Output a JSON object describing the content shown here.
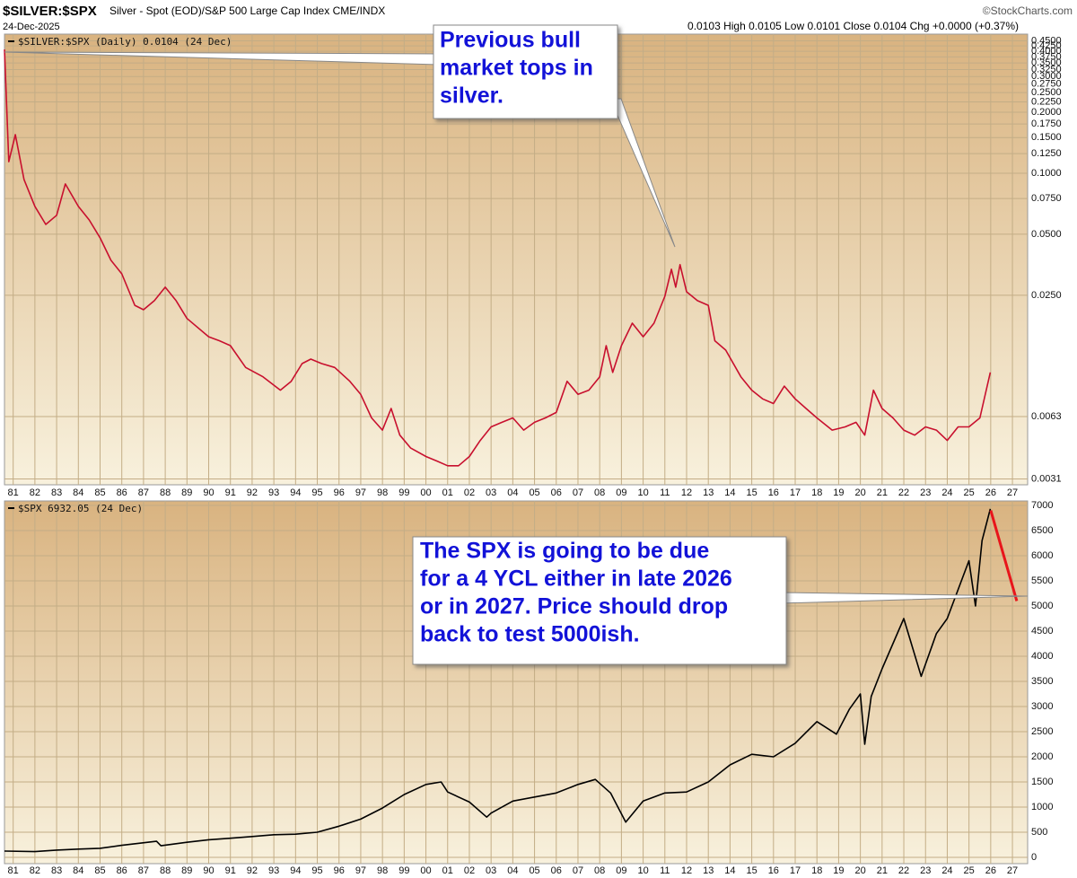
{
  "header": {
    "symbol": "$SILVER:$SPX",
    "description": "Silver - Spot (EOD)/S&P 500 Large Cap Index CME/INDX",
    "date": "24-Dec-2025",
    "credit": "©StockCharts.com",
    "quote": "0.0103 High 0.0105 Low 0.0101 Close 0.0104 Chg +0.0000 (+0.37%)"
  },
  "chart_data": [
    {
      "type": "line",
      "log_scale": true,
      "grid": true,
      "callout": [
        "Previous bull",
        "market tops in",
        "silver."
      ],
      "xlim": [
        1980.6,
        2027.7
      ],
      "ylim": [
        0.0029,
        0.486
      ],
      "xticks": [
        {
          "value": 1981,
          "label": "81"
        },
        {
          "value": 1982,
          "label": "82"
        },
        {
          "value": 1983,
          "label": "83"
        },
        {
          "value": 1984,
          "label": "84"
        },
        {
          "value": 1985,
          "label": "85"
        },
        {
          "value": 1986,
          "label": "86"
        },
        {
          "value": 1987,
          "label": "87"
        },
        {
          "value": 1988,
          "label": "88"
        },
        {
          "value": 1989,
          "label": "89"
        },
        {
          "value": 1990,
          "label": "90"
        },
        {
          "value": 1991,
          "label": "91"
        },
        {
          "value": 1992,
          "label": "92"
        },
        {
          "value": 1993,
          "label": "93"
        },
        {
          "value": 1994,
          "label": "94"
        },
        {
          "value": 1995,
          "label": "95"
        },
        {
          "value": 1996,
          "label": "96"
        },
        {
          "value": 1997,
          "label": "97"
        },
        {
          "value": 1998,
          "label": "98"
        },
        {
          "value": 1999,
          "label": "99"
        },
        {
          "value": 2000,
          "label": "00"
        },
        {
          "value": 2001,
          "label": "01"
        },
        {
          "value": 2002,
          "label": "02"
        },
        {
          "value": 2003,
          "label": "03"
        },
        {
          "value": 2004,
          "label": "04"
        },
        {
          "value": 2005,
          "label": "05"
        },
        {
          "value": 2006,
          "label": "06"
        },
        {
          "value": 2007,
          "label": "07"
        },
        {
          "value": 2008,
          "label": "08"
        },
        {
          "value": 2009,
          "label": "09"
        },
        {
          "value": 2010,
          "label": "10"
        },
        {
          "value": 2011,
          "label": "11"
        },
        {
          "value": 2012,
          "label": "12"
        },
        {
          "value": 2013,
          "label": "13"
        },
        {
          "value": 2014,
          "label": "14"
        },
        {
          "value": 2015,
          "label": "15"
        },
        {
          "value": 2016,
          "label": "16"
        },
        {
          "value": 2017,
          "label": "17"
        },
        {
          "value": 2018,
          "label": "18"
        },
        {
          "value": 2019,
          "label": "19"
        },
        {
          "value": 2020,
          "label": "20"
        },
        {
          "value": 2021,
          "label": "21"
        },
        {
          "value": 2022,
          "label": "22"
        },
        {
          "value": 2023,
          "label": "23"
        },
        {
          "value": 2024,
          "label": "24"
        },
        {
          "value": 2025,
          "label": "25"
        },
        {
          "value": 2026,
          "label": "26"
        },
        {
          "value": 2027,
          "label": "27"
        }
      ],
      "yticks": [
        {
          "value": 0.45,
          "label": "0.4500"
        },
        {
          "value": 0.425,
          "label": "0.4250"
        },
        {
          "value": 0.4,
          "label": "0.4000"
        },
        {
          "value": 0.375,
          "label": "0.3750"
        },
        {
          "value": 0.35,
          "label": "0.3500"
        },
        {
          "value": 0.325,
          "label": "0.3250"
        },
        {
          "value": 0.3,
          "label": "0.3000"
        },
        {
          "value": 0.275,
          "label": "0.2750"
        },
        {
          "value": 0.25,
          "label": "0.2500"
        },
        {
          "value": 0.225,
          "label": "0.2250"
        },
        {
          "value": 0.2,
          "label": "0.2000"
        },
        {
          "value": 0.175,
          "label": "0.1750"
        },
        {
          "value": 0.15,
          "label": "0.1500"
        },
        {
          "value": 0.125,
          "label": "0.1250"
        },
        {
          "value": 0.1,
          "label": "0.1000"
        },
        {
          "value": 0.075,
          "label": "0.0750"
        },
        {
          "value": 0.05,
          "label": "0.0500"
        },
        {
          "value": 0.025,
          "label": "0.0250"
        },
        {
          "value": 0.0063,
          "label": "0.0063"
        },
        {
          "value": 0.0031,
          "label": "0.0031"
        }
      ],
      "x": [
        1980.6,
        1980.8,
        1981.1,
        1981.5,
        1982,
        1982.5,
        1983,
        1983.4,
        1984,
        1984.5,
        1985,
        1985.5,
        1986,
        1986.6,
        1987,
        1987.5,
        1988,
        1988.5,
        1989,
        1990,
        1990.5,
        1991,
        1991.7,
        1992.5,
        1993.3,
        1993.8,
        1994.3,
        1994.7,
        1995.2,
        1995.8,
        1996.5,
        1997,
        1997.5,
        1998,
        1998.4,
        1998.8,
        1999.3,
        2000,
        2000.5,
        2001,
        2001.5,
        2002,
        2002.5,
        2003,
        2003.5,
        2004,
        2004.5,
        2005,
        2005.5,
        2006,
        2006.5,
        2007,
        2007.5,
        2008,
        2008.3,
        2008.6,
        2009,
        2009.5,
        2010,
        2010.5,
        2011,
        2011.3,
        2011.5,
        2011.7,
        2012,
        2012.5,
        2013,
        2013.3,
        2013.8,
        2014.5,
        2015,
        2015.5,
        2016,
        2016.5,
        2017,
        2017.5,
        2018,
        2018.7,
        2019.3,
        2019.8,
        2020.2,
        2020.6,
        2021,
        2021.5,
        2022,
        2022.5,
        2023,
        2023.5,
        2024,
        2024.5,
        2025,
        2025.5,
        2025.98
      ],
      "series": [
        {
          "name": "$SILVER:$SPX (Daily) 0.0104 (24 Dec)",
          "color": "#c8102e",
          "values": [
            0.408,
            0.114,
            0.155,
            0.093,
            0.0686,
            0.0559,
            0.062,
            0.0885,
            0.0686,
            0.0588,
            0.048,
            0.0372,
            0.0319,
            0.0223,
            0.0212,
            0.0235,
            0.0274,
            0.0235,
            0.0192,
            0.0156,
            0.0149,
            0.0141,
            0.011,
            0.0099,
            0.0085,
            0.0094,
            0.0115,
            0.0121,
            0.0115,
            0.011,
            0.0094,
            0.0081,
            0.0062,
            0.0054,
            0.0069,
            0.0051,
            0.0044,
            0.004,
            0.0038,
            0.0036,
            0.0036,
            0.004,
            0.0048,
            0.0056,
            0.0059,
            0.0062,
            0.0054,
            0.0059,
            0.0062,
            0.0066,
            0.0094,
            0.0081,
            0.0085,
            0.0099,
            0.0141,
            0.0104,
            0.0141,
            0.0182,
            0.0156,
            0.0182,
            0.0247,
            0.0336,
            0.0274,
            0.0354,
            0.026,
            0.0235,
            0.0223,
            0.0149,
            0.0134,
            0.0099,
            0.0085,
            0.0077,
            0.0073,
            0.0089,
            0.0077,
            0.0069,
            0.0062,
            0.0054,
            0.0056,
            0.0059,
            0.0051,
            0.0085,
            0.0069,
            0.0062,
            0.0054,
            0.0051,
            0.0056,
            0.0054,
            0.0048,
            0.0056,
            0.0056,
            0.0062,
            0.0104
          ]
        }
      ]
    },
    {
      "type": "line",
      "log_scale": false,
      "grid": true,
      "callout": [
        "The SPX is going to be due",
        "for a 4 YCL either in late 2026",
        "or in 2027. Price should drop",
        "back to test 5000ish."
      ],
      "xlim": [
        1980.6,
        2027.7
      ],
      "ylim": [
        -125,
        7090
      ],
      "xticks": [
        {
          "value": 1981,
          "label": "81"
        },
        {
          "value": 1982,
          "label": "82"
        },
        {
          "value": 1983,
          "label": "83"
        },
        {
          "value": 1984,
          "label": "84"
        },
        {
          "value": 1985,
          "label": "85"
        },
        {
          "value": 1986,
          "label": "86"
        },
        {
          "value": 1987,
          "label": "87"
        },
        {
          "value": 1988,
          "label": "88"
        },
        {
          "value": 1989,
          "label": "89"
        },
        {
          "value": 1990,
          "label": "90"
        },
        {
          "value": 1991,
          "label": "91"
        },
        {
          "value": 1992,
          "label": "92"
        },
        {
          "value": 1993,
          "label": "93"
        },
        {
          "value": 1994,
          "label": "94"
        },
        {
          "value": 1995,
          "label": "95"
        },
        {
          "value": 1996,
          "label": "96"
        },
        {
          "value": 1997,
          "label": "97"
        },
        {
          "value": 1998,
          "label": "98"
        },
        {
          "value": 1999,
          "label": "99"
        },
        {
          "value": 2000,
          "label": "00"
        },
        {
          "value": 2001,
          "label": "01"
        },
        {
          "value": 2002,
          "label": "02"
        },
        {
          "value": 2003,
          "label": "03"
        },
        {
          "value": 2004,
          "label": "04"
        },
        {
          "value": 2005,
          "label": "05"
        },
        {
          "value": 2006,
          "label": "06"
        },
        {
          "value": 2007,
          "label": "07"
        },
        {
          "value": 2008,
          "label": "08"
        },
        {
          "value": 2009,
          "label": "09"
        },
        {
          "value": 2010,
          "label": "10"
        },
        {
          "value": 2011,
          "label": "11"
        },
        {
          "value": 2012,
          "label": "12"
        },
        {
          "value": 2013,
          "label": "13"
        },
        {
          "value": 2014,
          "label": "14"
        },
        {
          "value": 2015,
          "label": "15"
        },
        {
          "value": 2016,
          "label": "16"
        },
        {
          "value": 2017,
          "label": "17"
        },
        {
          "value": 2018,
          "label": "18"
        },
        {
          "value": 2019,
          "label": "19"
        },
        {
          "value": 2020,
          "label": "20"
        },
        {
          "value": 2021,
          "label": "21"
        },
        {
          "value": 2022,
          "label": "22"
        },
        {
          "value": 2023,
          "label": "23"
        },
        {
          "value": 2024,
          "label": "24"
        },
        {
          "value": 2025,
          "label": "25"
        },
        {
          "value": 2026,
          "label": "26"
        },
        {
          "value": 2027,
          "label": "27"
        }
      ],
      "yticks": [
        0,
        500,
        1000,
        1500,
        2000,
        2500,
        3000,
        3500,
        4000,
        4500,
        5000,
        5500,
        6000,
        6500,
        7000
      ],
      "x": [
        1980.6,
        1982,
        1983,
        1984,
        1985,
        1986,
        1987.6,
        1987.8,
        1989,
        1990,
        1991,
        1992,
        1993,
        1994,
        1995,
        1996,
        1997,
        1998,
        1999,
        2000,
        2000.7,
        2001,
        2002,
        2002.8,
        2003,
        2004,
        2005,
        2006,
        2007,
        2007.8,
        2008.5,
        2009.2,
        2010,
        2011,
        2012,
        2013,
        2014,
        2015,
        2016,
        2017,
        2018,
        2018.9,
        2019.5,
        2020,
        2020.2,
        2020.5,
        2021,
        2022,
        2022.8,
        2023.5,
        2024,
        2025,
        2025.3,
        2025.6,
        2025.98
      ],
      "series": [
        {
          "name": "$SPX 6932.05 (24 Dec)",
          "color": "#000000",
          "values": [
            125,
            115,
            145,
            165,
            180,
            240,
            320,
            230,
            300,
            350,
            380,
            415,
            450,
            460,
            500,
            620,
            760,
            980,
            1250,
            1450,
            1500,
            1300,
            1100,
            800,
            880,
            1120,
            1200,
            1280,
            1450,
            1550,
            1280,
            700,
            1120,
            1280,
            1300,
            1500,
            1840,
            2050,
            2000,
            2270,
            2700,
            2450,
            2950,
            3250,
            2250,
            3200,
            3750,
            4750,
            3600,
            4450,
            4750,
            5900,
            5000,
            6300,
            6932.05
          ]
        }
      ],
      "projection": {
        "color": "#e8151b",
        "x": [
          2026.0,
          2027.2
        ],
        "y": [
          6900,
          5100
        ]
      }
    }
  ]
}
